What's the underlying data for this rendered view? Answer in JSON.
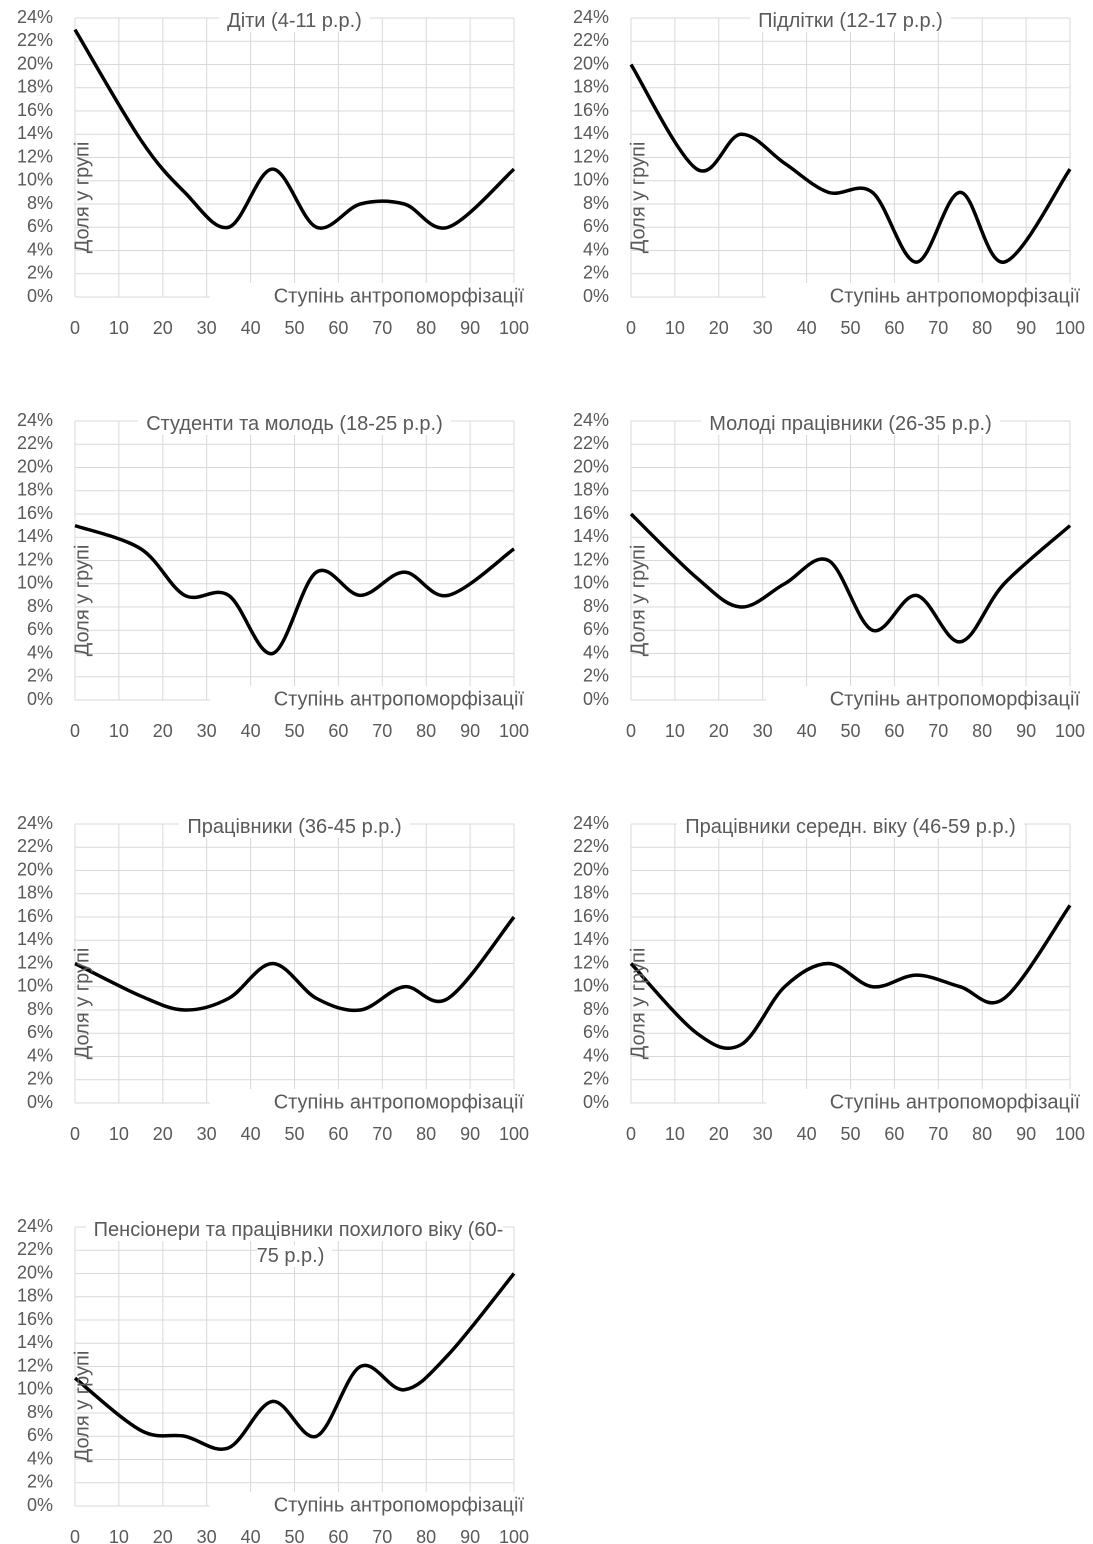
{
  "chart_data": [
    {
      "type": "line",
      "title": "Діти (4-11 р.р.)",
      "x_label": "Ступінь антропоморфізації",
      "y_label": "Доля у групі",
      "x": [
        0,
        15,
        25,
        35,
        45,
        55,
        65,
        75,
        85,
        100
      ],
      "values": [
        23,
        13.5,
        9,
        6,
        11,
        6,
        8,
        8,
        6,
        11
      ],
      "color": "#000000",
      "xlim": [
        0,
        100
      ],
      "ylim": [
        0,
        24
      ],
      "xticks": [
        0,
        10,
        20,
        30,
        40,
        50,
        60,
        70,
        80,
        90,
        100
      ],
      "yticks": [
        {
          "value": 0,
          "label": "0%"
        },
        {
          "value": 2,
          "label": "2%"
        },
        {
          "value": 4,
          "label": "4%"
        },
        {
          "value": 6,
          "label": "6%"
        },
        {
          "value": 8,
          "label": "8%"
        },
        {
          "value": 10,
          "label": "10%"
        },
        {
          "value": 12,
          "label": "12%"
        },
        {
          "value": 14,
          "label": "14%"
        },
        {
          "value": 16,
          "label": "16%"
        },
        {
          "value": 18,
          "label": "18%"
        },
        {
          "value": 20,
          "label": "20%"
        },
        {
          "value": 22,
          "label": "22%"
        },
        {
          "value": 24,
          "label": "24%"
        }
      ],
      "grid": true
    },
    {
      "type": "line",
      "title": "Підлітки (12-17 р.р.)",
      "x_label": "Ступінь антропоморфізації",
      "y_label": "Доля у групі",
      "x": [
        0,
        15,
        25,
        35,
        45,
        55,
        65,
        75,
        85,
        100
      ],
      "values": [
        20,
        11,
        14,
        11.5,
        9,
        9,
        3,
        9,
        3,
        11
      ],
      "color": "#000000",
      "xlim": [
        0,
        100
      ],
      "ylim": [
        0,
        24
      ],
      "xticks": [
        0,
        10,
        20,
        30,
        40,
        50,
        60,
        70,
        80,
        90,
        100
      ],
      "yticks": [
        {
          "value": 0,
          "label": "0%"
        },
        {
          "value": 2,
          "label": "2%"
        },
        {
          "value": 4,
          "label": "4%"
        },
        {
          "value": 6,
          "label": "6%"
        },
        {
          "value": 8,
          "label": "8%"
        },
        {
          "value": 10,
          "label": "10%"
        },
        {
          "value": 12,
          "label": "12%"
        },
        {
          "value": 14,
          "label": "14%"
        },
        {
          "value": 16,
          "label": "16%"
        },
        {
          "value": 18,
          "label": "18%"
        },
        {
          "value": 20,
          "label": "20%"
        },
        {
          "value": 22,
          "label": "22%"
        },
        {
          "value": 24,
          "label": "24%"
        }
      ],
      "grid": true
    },
    {
      "type": "line",
      "title": "Студенти та молодь (18-25 р.р.)",
      "x_label": "Ступінь антропоморфізації",
      "y_label": "Доля у групі",
      "x": [
        0,
        15,
        25,
        35,
        45,
        55,
        65,
        75,
        85,
        100
      ],
      "values": [
        15,
        13,
        9,
        9,
        4,
        11,
        9,
        11,
        9,
        13
      ],
      "color": "#000000",
      "xlim": [
        0,
        100
      ],
      "ylim": [
        0,
        24
      ],
      "xticks": [
        0,
        10,
        20,
        30,
        40,
        50,
        60,
        70,
        80,
        90,
        100
      ],
      "yticks": [
        {
          "value": 0,
          "label": "0%"
        },
        {
          "value": 2,
          "label": "2%"
        },
        {
          "value": 4,
          "label": "4%"
        },
        {
          "value": 6,
          "label": "6%"
        },
        {
          "value": 8,
          "label": "8%"
        },
        {
          "value": 10,
          "label": "10%"
        },
        {
          "value": 12,
          "label": "12%"
        },
        {
          "value": 14,
          "label": "14%"
        },
        {
          "value": 16,
          "label": "16%"
        },
        {
          "value": 18,
          "label": "18%"
        },
        {
          "value": 20,
          "label": "20%"
        },
        {
          "value": 22,
          "label": "22%"
        },
        {
          "value": 24,
          "label": "24%"
        }
      ],
      "grid": true
    },
    {
      "type": "line",
      "title": "Молоді працівники (26-35 р.р.)",
      "x_label": "Ступінь антропоморфізації",
      "y_label": "Доля у групі",
      "x": [
        0,
        15,
        25,
        35,
        45,
        55,
        65,
        75,
        85,
        100
      ],
      "values": [
        16,
        10.5,
        8,
        10,
        12,
        6,
        9,
        5,
        10,
        15
      ],
      "color": "#000000",
      "xlim": [
        0,
        100
      ],
      "ylim": [
        0,
        24
      ],
      "xticks": [
        0,
        10,
        20,
        30,
        40,
        50,
        60,
        70,
        80,
        90,
        100
      ],
      "yticks": [
        {
          "value": 0,
          "label": "0%"
        },
        {
          "value": 2,
          "label": "2%"
        },
        {
          "value": 4,
          "label": "4%"
        },
        {
          "value": 6,
          "label": "6%"
        },
        {
          "value": 8,
          "label": "8%"
        },
        {
          "value": 10,
          "label": "10%"
        },
        {
          "value": 12,
          "label": "12%"
        },
        {
          "value": 14,
          "label": "14%"
        },
        {
          "value": 16,
          "label": "16%"
        },
        {
          "value": 18,
          "label": "18%"
        },
        {
          "value": 20,
          "label": "20%"
        },
        {
          "value": 22,
          "label": "22%"
        },
        {
          "value": 24,
          "label": "24%"
        }
      ],
      "grid": true
    },
    {
      "type": "line",
      "title": "Працівники (36-45 р.р.)",
      "x_label": "Ступінь антропоморфізації",
      "y_label": "Доля у групі",
      "x": [
        0,
        15,
        25,
        35,
        45,
        55,
        65,
        75,
        85,
        100
      ],
      "values": [
        12,
        9.2,
        8,
        9,
        12,
        9,
        8,
        10,
        9,
        16
      ],
      "color": "#000000",
      "xlim": [
        0,
        100
      ],
      "ylim": [
        0,
        24
      ],
      "xticks": [
        0,
        10,
        20,
        30,
        40,
        50,
        60,
        70,
        80,
        90,
        100
      ],
      "yticks": [
        {
          "value": 0,
          "label": "0%"
        },
        {
          "value": 2,
          "label": "2%"
        },
        {
          "value": 4,
          "label": "4%"
        },
        {
          "value": 6,
          "label": "6%"
        },
        {
          "value": 8,
          "label": "8%"
        },
        {
          "value": 10,
          "label": "10%"
        },
        {
          "value": 12,
          "label": "12%"
        },
        {
          "value": 14,
          "label": "14%"
        },
        {
          "value": 16,
          "label": "16%"
        },
        {
          "value": 18,
          "label": "18%"
        },
        {
          "value": 20,
          "label": "20%"
        },
        {
          "value": 22,
          "label": "22%"
        },
        {
          "value": 24,
          "label": "24%"
        }
      ],
      "grid": true
    },
    {
      "type": "line",
      "title": "Працівники середн. віку (46-59 р.р.)",
      "x_label": "Ступінь антропоморфізації",
      "y_label": "Доля у групі",
      "x": [
        0,
        15,
        25,
        35,
        45,
        55,
        65,
        75,
        85,
        100
      ],
      "values": [
        12,
        6,
        5,
        10,
        12,
        10,
        11,
        10,
        9,
        17
      ],
      "color": "#000000",
      "xlim": [
        0,
        100
      ],
      "ylim": [
        0,
        24
      ],
      "xticks": [
        0,
        10,
        20,
        30,
        40,
        50,
        60,
        70,
        80,
        90,
        100
      ],
      "yticks": [
        {
          "value": 0,
          "label": "0%"
        },
        {
          "value": 2,
          "label": "2%"
        },
        {
          "value": 4,
          "label": "4%"
        },
        {
          "value": 6,
          "label": "6%"
        },
        {
          "value": 8,
          "label": "8%"
        },
        {
          "value": 10,
          "label": "10%"
        },
        {
          "value": 12,
          "label": "12%"
        },
        {
          "value": 14,
          "label": "14%"
        },
        {
          "value": 16,
          "label": "16%"
        },
        {
          "value": 18,
          "label": "18%"
        },
        {
          "value": 20,
          "label": "20%"
        },
        {
          "value": 22,
          "label": "22%"
        },
        {
          "value": 24,
          "label": "24%"
        }
      ],
      "grid": true
    },
    {
      "type": "line",
      "title": "Пенсіонери та працівники похилого віку (60-75 р.р.)",
      "x_label": "Ступінь антропоморфізації",
      "y_label": "Доля у групі",
      "x": [
        0,
        15,
        25,
        35,
        45,
        55,
        65,
        75,
        85,
        100
      ],
      "values": [
        11,
        6.5,
        6,
        5,
        9,
        6,
        12,
        10,
        13,
        20
      ],
      "color": "#000000",
      "xlim": [
        0,
        100
      ],
      "ylim": [
        0,
        24
      ],
      "xticks": [
        0,
        10,
        20,
        30,
        40,
        50,
        60,
        70,
        80,
        90,
        100
      ],
      "yticks": [
        {
          "value": 0,
          "label": "0%"
        },
        {
          "value": 2,
          "label": "2%"
        },
        {
          "value": 4,
          "label": "4%"
        },
        {
          "value": 6,
          "label": "6%"
        },
        {
          "value": 8,
          "label": "8%"
        },
        {
          "value": 10,
          "label": "10%"
        },
        {
          "value": 12,
          "label": "12%"
        },
        {
          "value": 14,
          "label": "14%"
        },
        {
          "value": 16,
          "label": "16%"
        },
        {
          "value": 18,
          "label": "18%"
        },
        {
          "value": 20,
          "label": "20%"
        },
        {
          "value": 22,
          "label": "22%"
        },
        {
          "value": 24,
          "label": "24%"
        }
      ],
      "grid": true
    }
  ]
}
